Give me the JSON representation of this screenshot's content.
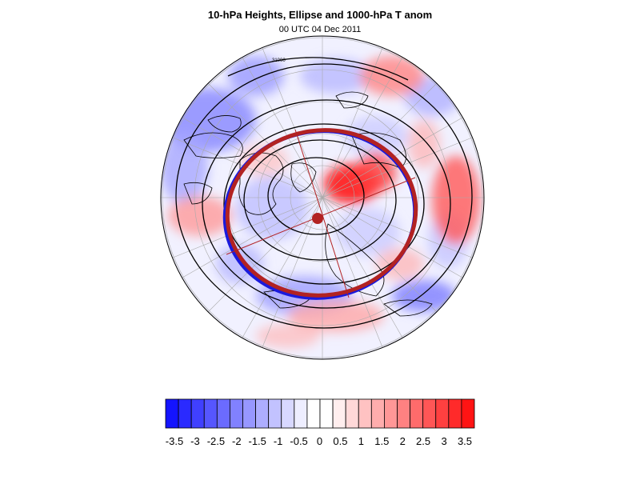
{
  "title": "10-hPa Heights, Ellipse and 1000-hPa T anom",
  "subtitle": "00 UTC 04 Dec 2011",
  "colorbar": {
    "tick_labels": [
      "-3.5",
      "-3",
      "-2.5",
      "-2",
      "-1.5",
      "-1",
      "-0.5",
      "0",
      "0.5",
      "1",
      "1.5",
      "2",
      "2.5",
      "3",
      "3.5"
    ],
    "colors": [
      "#1414ff",
      "#2a2aff",
      "#4040ff",
      "#5656ff",
      "#6b6bff",
      "#8181ff",
      "#9797ff",
      "#adadff",
      "#c2c2ff",
      "#d8d8ff",
      "#eeeeff",
      "#ffffff",
      "#ffffff",
      "#ffeeee",
      "#ffd8d8",
      "#ffc2c2",
      "#ffadad",
      "#ff9797",
      "#ff8181",
      "#ff6b6b",
      "#ff5656",
      "#ff4040",
      "#ff2a2a",
      "#ff1414"
    ]
  },
  "map": {
    "projection": "north polar stereographic",
    "contour_label": "31000",
    "ellipse_fill_color": "#b22222",
    "ellipse_edge_color": "#1a1adc",
    "contour_color": "#000000"
  }
}
